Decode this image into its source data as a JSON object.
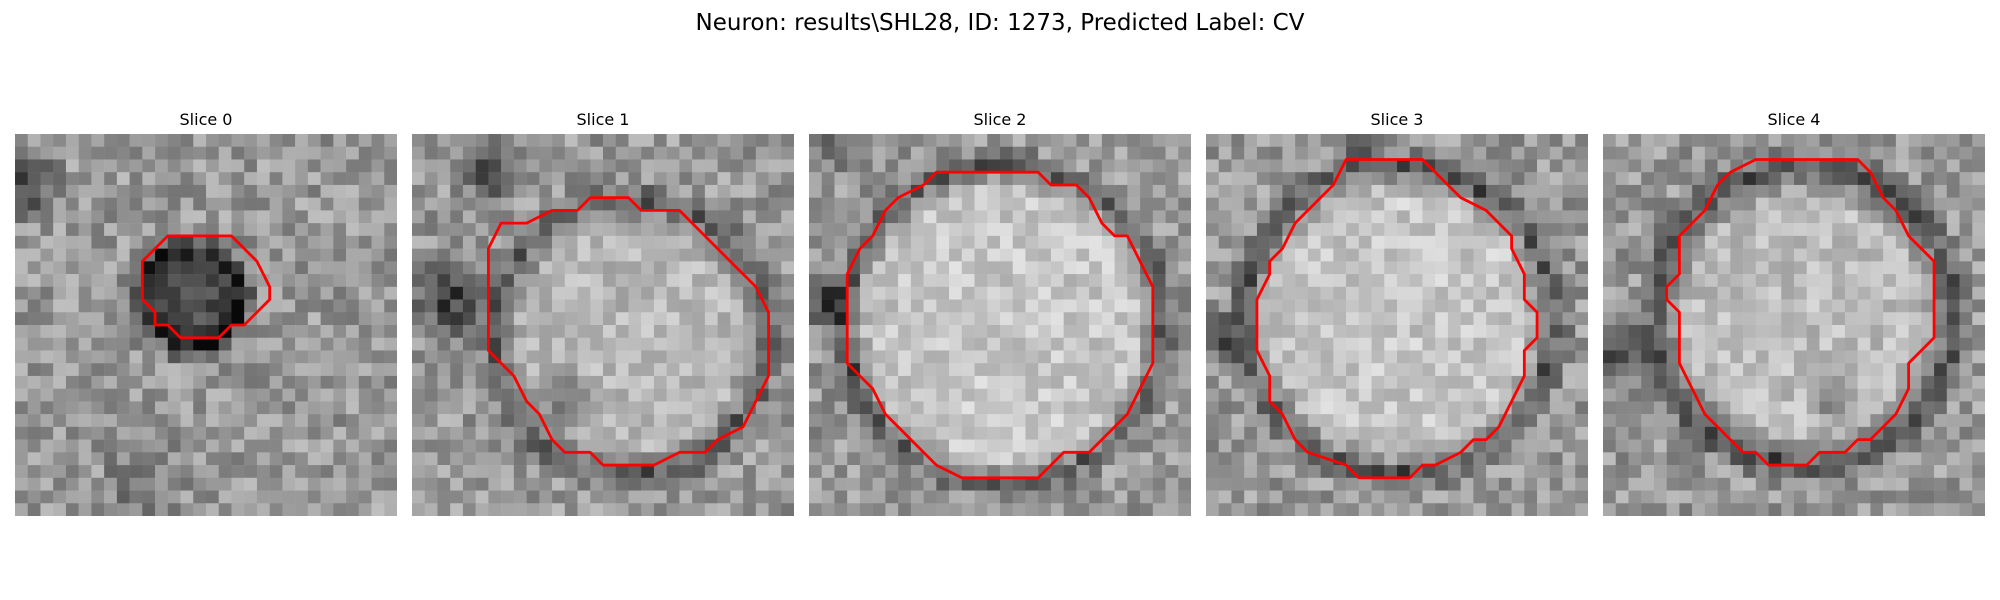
{
  "figure": {
    "title": "Neuron: results\\SHL28, ID: 1273, Predicted Label: CV",
    "contour_color": "#ff0000",
    "colormap": "grayscale"
  },
  "slices": [
    {
      "title": "Slice 0",
      "contour": [
        [
          13,
          8
        ],
        [
          17,
          8
        ],
        [
          19,
          10
        ],
        [
          20,
          12
        ],
        [
          20,
          13
        ],
        [
          18,
          15
        ],
        [
          17,
          15
        ],
        [
          16,
          16
        ],
        [
          13,
          16
        ],
        [
          12,
          15
        ],
        [
          11,
          15
        ],
        [
          11,
          14
        ],
        [
          10,
          13
        ],
        [
          10,
          10
        ],
        [
          12,
          8
        ]
      ]
    },
    {
      "title": "Slice 1",
      "contour": [
        [
          14,
          5
        ],
        [
          17,
          5
        ],
        [
          18,
          6
        ],
        [
          21,
          6
        ],
        [
          24,
          9
        ],
        [
          25,
          10
        ],
        [
          27,
          12
        ],
        [
          28,
          14
        ],
        [
          28,
          19
        ],
        [
          27,
          21
        ],
        [
          26,
          23
        ],
        [
          24,
          24
        ],
        [
          23,
          25
        ],
        [
          21,
          25
        ],
        [
          19,
          26
        ],
        [
          15,
          26
        ],
        [
          14,
          25
        ],
        [
          12,
          25
        ],
        [
          11,
          24
        ],
        [
          10,
          22
        ],
        [
          9,
          21
        ],
        [
          8,
          19
        ],
        [
          6,
          17
        ],
        [
          6,
          12
        ],
        [
          6,
          9
        ],
        [
          7,
          7
        ],
        [
          9,
          7
        ],
        [
          11,
          6
        ],
        [
          13,
          6
        ]
      ]
    },
    {
      "title": "Slice 2",
      "contour": [
        [
          9,
          4
        ],
        [
          10,
          3
        ],
        [
          18,
          3
        ],
        [
          19,
          4
        ],
        [
          21,
          4
        ],
        [
          22,
          5
        ],
        [
          23,
          7
        ],
        [
          24,
          8
        ],
        [
          25,
          8
        ],
        [
          26,
          10
        ],
        [
          27,
          12
        ],
        [
          27,
          18
        ],
        [
          26,
          20
        ],
        [
          25,
          22
        ],
        [
          24,
          23
        ],
        [
          22,
          25
        ],
        [
          20,
          25
        ],
        [
          19,
          26
        ],
        [
          18,
          27
        ],
        [
          12,
          27
        ],
        [
          10,
          26
        ],
        [
          9,
          25
        ],
        [
          7,
          23
        ],
        [
          6,
          22
        ],
        [
          5,
          20
        ],
        [
          4,
          19
        ],
        [
          3,
          18
        ],
        [
          3,
          11
        ],
        [
          4,
          9
        ],
        [
          5,
          8
        ],
        [
          6,
          6
        ],
        [
          7,
          5
        ]
      ]
    },
    {
      "title": "Slice 3",
      "contour": [
        [
          11,
          2
        ],
        [
          17,
          2
        ],
        [
          18,
          3
        ],
        [
          19,
          4
        ],
        [
          20,
          5
        ],
        [
          22,
          6
        ],
        [
          23,
          7
        ],
        [
          24,
          8
        ],
        [
          24,
          9
        ],
        [
          25,
          11
        ],
        [
          25,
          13
        ],
        [
          26,
          14
        ],
        [
          26,
          16
        ],
        [
          25,
          17
        ],
        [
          25,
          19
        ],
        [
          24,
          21
        ],
        [
          23,
          23
        ],
        [
          22,
          24
        ],
        [
          21,
          24
        ],
        [
          20,
          25
        ],
        [
          18,
          26
        ],
        [
          17,
          26
        ],
        [
          16,
          27
        ],
        [
          12,
          27
        ],
        [
          11,
          26
        ],
        [
          8,
          25
        ],
        [
          7,
          24
        ],
        [
          6,
          22
        ],
        [
          5,
          21
        ],
        [
          5,
          19
        ],
        [
          4,
          17
        ],
        [
          4,
          15
        ],
        [
          4,
          13
        ],
        [
          5,
          11
        ],
        [
          5,
          10
        ],
        [
          6,
          9
        ],
        [
          7,
          7
        ],
        [
          8,
          6
        ],
        [
          9,
          5
        ],
        [
          10,
          4
        ]
      ]
    },
    {
      "title": "Slice 4",
      "contour": [
        [
          12,
          2
        ],
        [
          20,
          2
        ],
        [
          21,
          3
        ],
        [
          22,
          5
        ],
        [
          23,
          6
        ],
        [
          24,
          8
        ],
        [
          25,
          9
        ],
        [
          26,
          10
        ],
        [
          26,
          13
        ],
        [
          26,
          16
        ],
        [
          25,
          17
        ],
        [
          24,
          18
        ],
        [
          24,
          20
        ],
        [
          23,
          22
        ],
        [
          22,
          23
        ],
        [
          21,
          24
        ],
        [
          20,
          24
        ],
        [
          19,
          25
        ],
        [
          17,
          25
        ],
        [
          16,
          26
        ],
        [
          13,
          26
        ],
        [
          12,
          25
        ],
        [
          11,
          25
        ],
        [
          10,
          24
        ],
        [
          9,
          23
        ],
        [
          8,
          22
        ],
        [
          7,
          20
        ],
        [
          6,
          18
        ],
        [
          6,
          16
        ],
        [
          6,
          14
        ],
        [
          5,
          13
        ],
        [
          5,
          12
        ],
        [
          6,
          11
        ],
        [
          6,
          10
        ],
        [
          6,
          8
        ],
        [
          7,
          7
        ],
        [
          8,
          6
        ],
        [
          9,
          4
        ],
        [
          10,
          3
        ]
      ]
    }
  ]
}
